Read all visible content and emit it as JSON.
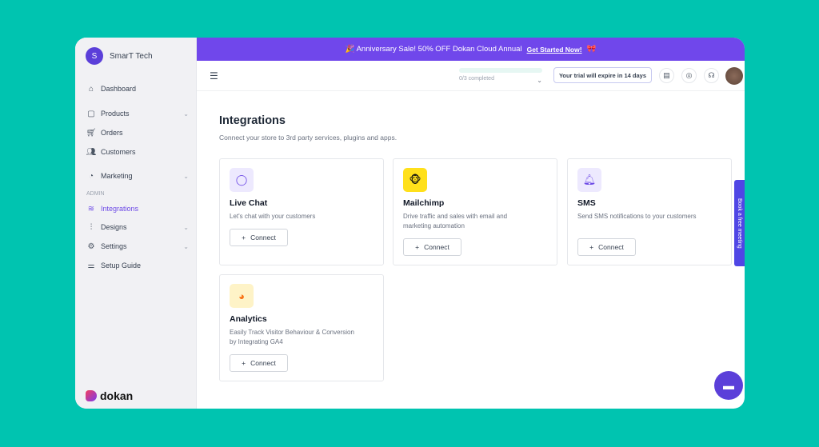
{
  "sidebar": {
    "store_initial": "S",
    "store_name": "SmarT Tech",
    "admin_label": "ADMIN",
    "logo_text": "dokan",
    "items": [
      {
        "label": "Dashboard"
      },
      {
        "label": "Products"
      },
      {
        "label": "Orders"
      },
      {
        "label": "Customers"
      },
      {
        "label": "Marketing"
      },
      {
        "label": "Integrations"
      },
      {
        "label": "Designs"
      },
      {
        "label": "Settings"
      },
      {
        "label": "Setup Guide"
      }
    ]
  },
  "banner": {
    "text": "🎉 Anniversary Sale! 50% OFF Dokan Cloud Annual",
    "link": "Get Started Now!",
    "emoji": "🎀"
  },
  "header": {
    "progress_text": "0/3 completed",
    "progress": 0,
    "trial": "Your trial will expire in 14 days"
  },
  "main": {
    "title": "Integrations",
    "subtitle": "Connect your store to 3rd party services, plugins and apps.",
    "cards": [
      {
        "name": "Live Chat",
        "desc": "Let's chat with your customers",
        "button": "Connect"
      },
      {
        "name": "Mailchimp",
        "desc": "Drive traffic and sales with email and marketing automation",
        "button": "Connect"
      },
      {
        "name": "SMS",
        "desc": "Send SMS notifications to your customers",
        "button": "Connect"
      },
      {
        "name": "Analytics",
        "desc": "Easily Track Visitor Behaviour & Conversion by Integrating GA4",
        "button": "Connect"
      }
    ]
  },
  "book_meeting": "Book a free meeting",
  "colors": {
    "accent": "#7047eb",
    "background": "#00c4b0"
  }
}
